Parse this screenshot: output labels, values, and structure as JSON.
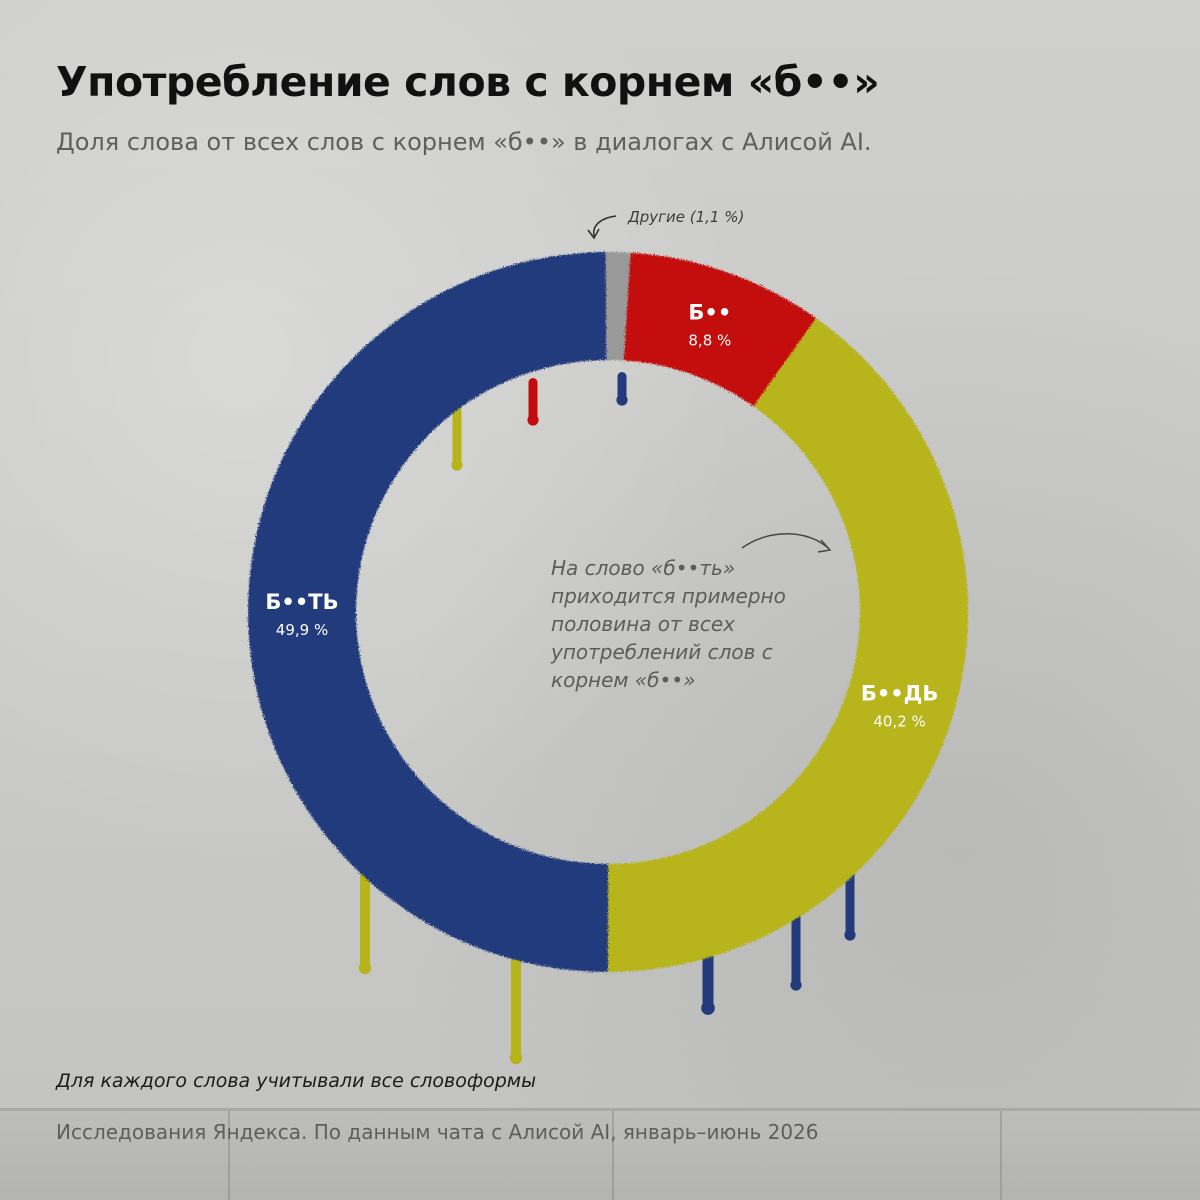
{
  "header": {
    "title": "Употребление слов с корнем «б••»",
    "subtitle": "Доля слова от всех слов с корнем «б••» в диалогах с Алисой AI."
  },
  "chart_data": {
    "type": "pie",
    "title": "Употребление слов с корнем «б••»",
    "subtitle": "Доля слова от всех слов с корнем «б••» в диалогах с Алисой AI.",
    "slices": [
      {
        "label": "Б••ТЬ",
        "value": 49.9,
        "value_text": "49,9 %",
        "color": "#233a7c"
      },
      {
        "label": "Б••ДЬ",
        "value": 40.2,
        "value_text": "40,2 %",
        "color": "#b7b41a"
      },
      {
        "label": "Б••",
        "value": 8.8,
        "value_text": "8,8 %",
        "color": "#c40b0b"
      },
      {
        "label": "Другие (1,1 %)",
        "value": 1.1,
        "value_text": "1,1 %",
        "color": "#999999"
      }
    ],
    "donut": true
  },
  "annotation": {
    "note": "На слово «б••ть» приходится примерно половина от всех употреблений слов с корнем «б••»"
  },
  "footer": {
    "footnote": "Для каждого слова учитывали все словоформы",
    "source": "Исследования Яндекса. По данным чата с Алисой AI, январь–июнь 2026"
  }
}
